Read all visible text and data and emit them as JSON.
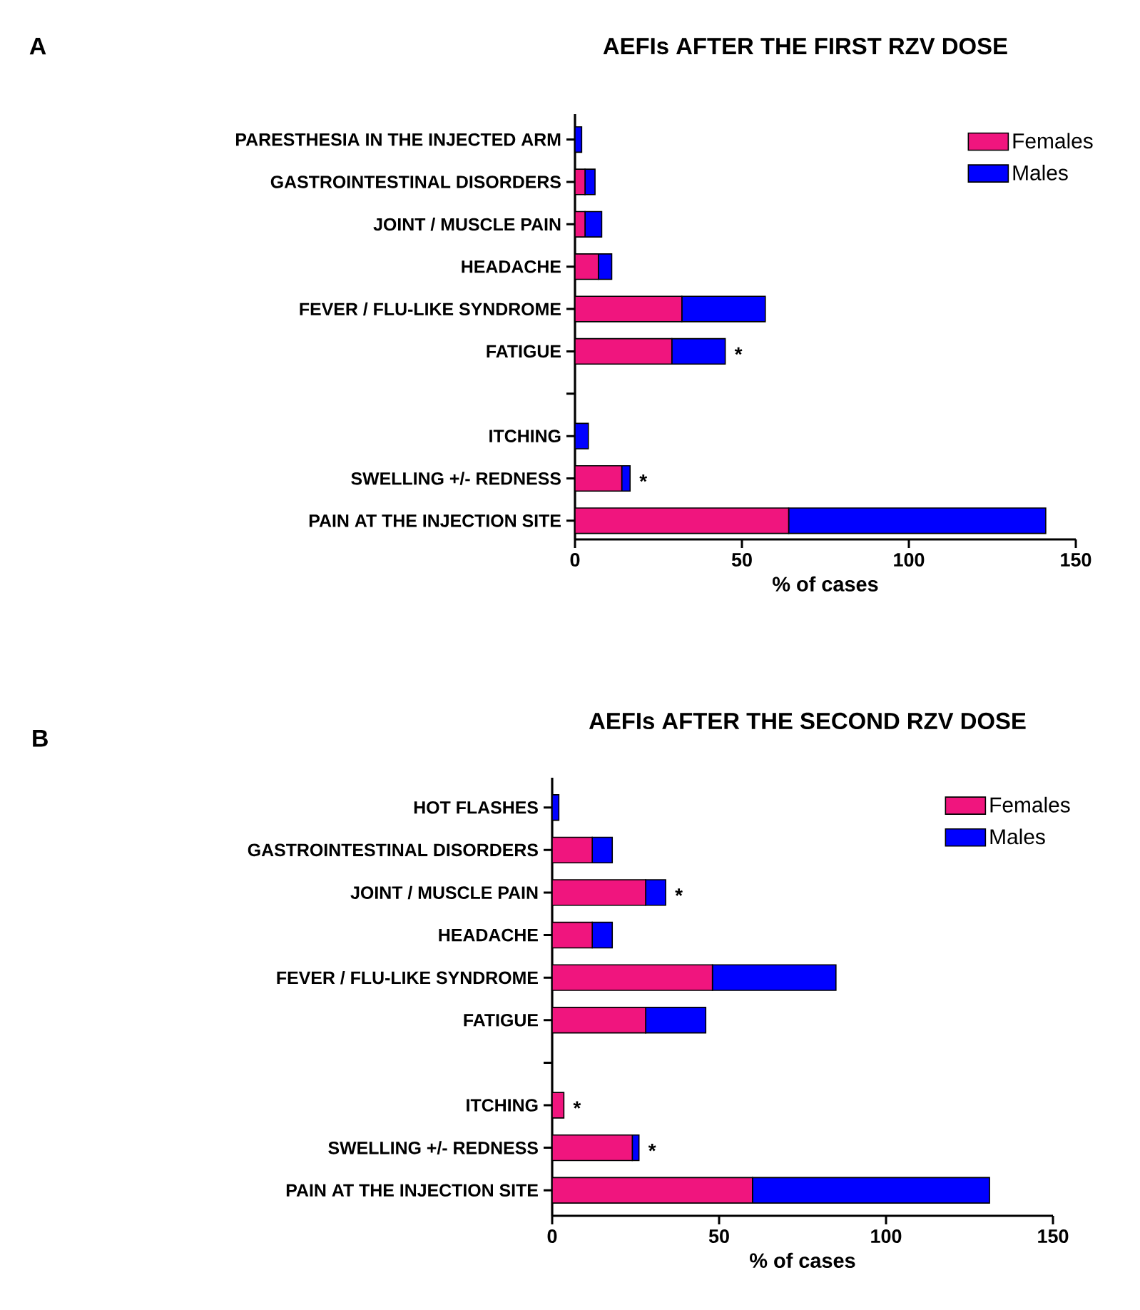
{
  "chart_data": [
    {
      "type": "bar",
      "orientation": "horizontal",
      "stacked": true,
      "title": "AEFIs AFTER THE FIRST RZV DOSE",
      "xlabel": "% of cases",
      "categories": [
        "PARESTHESIA IN THE INJECTED ARM",
        "GASTROINTESTINAL DISORDERS",
        "JOINT / MUSCLE PAIN",
        "HEADACHE",
        "FEVER / FLU-LIKE SYNDROME",
        "FATIGUE",
        null,
        "ITCHING",
        "SWELLING +/- REDNESS",
        "PAIN AT THE INJECTION SITE"
      ],
      "series": [
        {
          "name": "Females",
          "color": "#f0157e",
          "values": [
            0,
            3,
            3,
            7,
            32,
            29,
            null,
            0,
            14,
            64
          ]
        },
        {
          "name": "Males",
          "color": "#0000ff",
          "values": [
            2,
            3,
            5,
            4,
            25,
            16,
            null,
            4,
            2.5,
            77
          ]
        }
      ],
      "xlim": [
        0,
        150
      ],
      "xticks": [
        0,
        50,
        100,
        150
      ],
      "legend": "top right",
      "annotations": [
        "A",
        {
          "text": "*",
          "x": 45,
          "y": "FATIGUE"
        },
        {
          "text": "*",
          "x": 16.5,
          "y": "SWELLING +/- REDNESS"
        }
      ]
    },
    {
      "type": "bar",
      "orientation": "horizontal",
      "stacked": true,
      "title": "AEFIs AFTER THE SECOND RZV DOSE",
      "xlabel": "% of cases",
      "categories": [
        "HOT FLASHES",
        "GASTROINTESTINAL DISORDERS",
        "JOINT / MUSCLE PAIN",
        "HEADACHE",
        "FEVER / FLU-LIKE SYNDROME",
        "FATIGUE",
        null,
        "ITCHING",
        "SWELLING +/- REDNESS",
        "PAIN AT THE INJECTION SITE"
      ],
      "series": [
        {
          "name": "Females",
          "color": "#f0157e",
          "values": [
            0,
            12,
            28,
            12,
            48,
            28,
            null,
            3.5,
            24,
            60
          ]
        },
        {
          "name": "Males",
          "color": "#0000ff",
          "values": [
            2,
            6,
            6,
            6,
            37,
            18,
            null,
            0,
            2,
            71
          ]
        }
      ],
      "xlim": [
        0,
        150
      ],
      "xticks": [
        0,
        50,
        100,
        150
      ],
      "legend": "top right",
      "annotations": [
        "B",
        {
          "text": "*",
          "x": 34,
          "y": "JOINT / MUSCLE PAIN"
        },
        {
          "text": "*",
          "x": 3.5,
          "y": "ITCHING"
        },
        {
          "text": "*",
          "x": 26,
          "y": "SWELLING +/- REDNESS"
        }
      ]
    }
  ]
}
